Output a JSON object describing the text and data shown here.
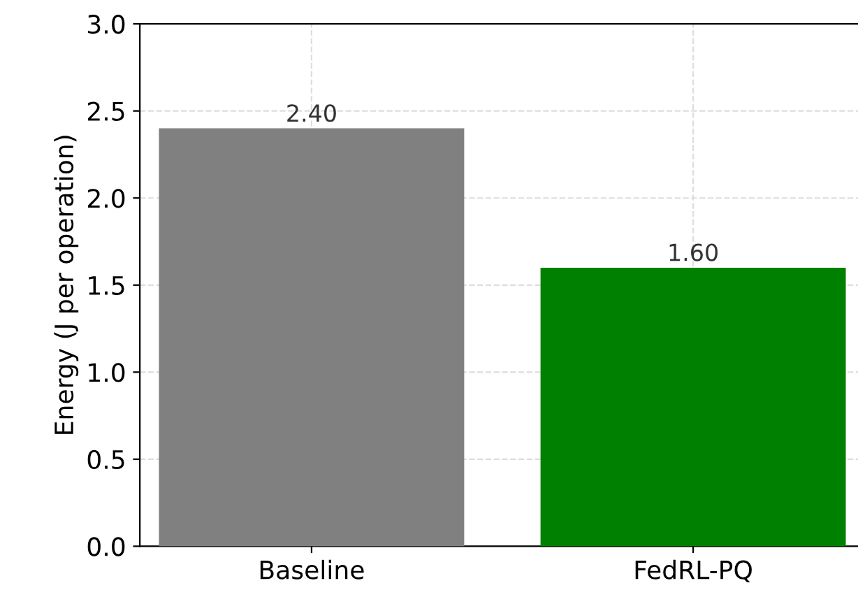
{
  "chart_data": {
    "type": "bar",
    "ylabel": "Energy (J per operation)",
    "categories": [
      "Baseline",
      "FedRL-PQ"
    ],
    "values": [
      2.4,
      1.6
    ],
    "colors": [
      "#808080",
      "#008000"
    ],
    "value_labels": [
      "2.40",
      "1.60"
    ],
    "ylim": [
      0,
      3.0
    ],
    "yticks": [
      {
        "value": 0,
        "label": "0.0"
      },
      0.5,
      {
        "value": 1,
        "label": "1.0"
      },
      1.5,
      {
        "value": 2,
        "label": "2.0"
      },
      2.5,
      {
        "value": 3,
        "label": "3.0"
      }
    ],
    "grid": true
  }
}
